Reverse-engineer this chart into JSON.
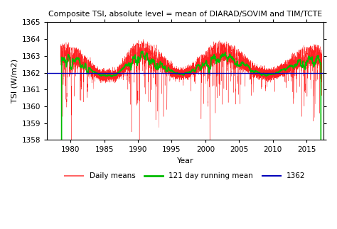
{
  "title": "Composite TSI, absolute level = mean of DIARAD/SOVIM and TIM/TCTE",
  "xlabel": "Year",
  "ylabel": "TSI (W/m2)",
  "ylim": [
    1358,
    1365
  ],
  "xlim": [
    1976.5,
    2017.5
  ],
  "xticks": [
    1980,
    1985,
    1990,
    1995,
    2000,
    2005,
    2010,
    2015
  ],
  "yticks": [
    1358,
    1359,
    1360,
    1361,
    1362,
    1363,
    1364,
    1365
  ],
  "baseline": 1362.0,
  "baseline_color": "#0000bb",
  "daily_color": "#ff2222",
  "running_color": "#00bb00",
  "legend_items": [
    "Daily means",
    "121 day running mean",
    "1362"
  ],
  "legend_colors": [
    "#ff6666",
    "#00bb00",
    "#0000bb"
  ],
  "baseline_value": 1362.0,
  "start_year": 1978.5,
  "end_year": 2017.3
}
